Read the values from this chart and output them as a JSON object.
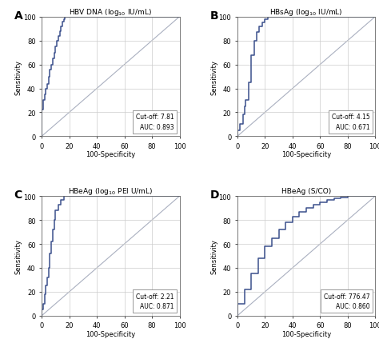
{
  "panels": [
    {
      "label": "A",
      "title": "HBV DNA (log$_{10}$ IU/mL)",
      "cutoff": "Cut-off: 7.81",
      "auc": "AUC: 0.893",
      "roc_x": [
        0,
        0,
        1,
        1,
        2,
        2,
        3,
        3,
        4,
        4,
        5,
        5,
        6,
        6,
        7,
        7,
        8,
        8,
        9,
        9,
        10,
        10,
        11,
        11,
        12,
        12,
        13,
        13,
        14,
        14,
        15,
        15,
        16,
        16,
        17,
        17,
        18,
        18,
        19,
        19,
        20,
        20,
        100
      ],
      "roc_y": [
        0,
        22,
        22,
        30,
        30,
        35,
        35,
        40,
        40,
        44,
        44,
        50,
        50,
        56,
        56,
        60,
        60,
        65,
        65,
        70,
        70,
        75,
        75,
        80,
        80,
        84,
        84,
        88,
        88,
        92,
        92,
        96,
        96,
        98,
        98,
        100,
        100,
        100,
        100,
        100,
        100,
        100,
        100
      ]
    },
    {
      "label": "B",
      "title": "HBsAg (log$_{10}$ IU/mL)",
      "cutoff": "Cut-off: 4.15",
      "auc": "AUC: 0.671",
      "roc_x": [
        0,
        0,
        2,
        2,
        4,
        4,
        5,
        5,
        6,
        6,
        8,
        8,
        10,
        10,
        12,
        12,
        14,
        14,
        16,
        16,
        18,
        18,
        20,
        20,
        22,
        22,
        25,
        25,
        30,
        30,
        35,
        35,
        38,
        38,
        100
      ],
      "roc_y": [
        0,
        5,
        5,
        10,
        10,
        18,
        18,
        25,
        25,
        30,
        30,
        45,
        45,
        68,
        68,
        80,
        80,
        87,
        87,
        92,
        92,
        95,
        95,
        98,
        98,
        100,
        100,
        100,
        100,
        100,
        100,
        100,
        100,
        100,
        100
      ]
    },
    {
      "label": "C",
      "title": "HBeAg (log$_{10}$ PEI U/mL)",
      "cutoff": "Cut-off: 2.21",
      "auc": "AUC: 0.871",
      "roc_x": [
        0,
        0,
        1,
        1,
        2,
        2,
        3,
        3,
        4,
        4,
        5,
        5,
        6,
        6,
        7,
        7,
        8,
        8,
        9,
        9,
        10,
        10,
        12,
        12,
        14,
        14,
        16,
        16,
        18,
        18,
        20,
        20,
        22,
        22,
        24,
        24,
        100
      ],
      "roc_y": [
        0,
        5,
        5,
        10,
        10,
        18,
        18,
        25,
        25,
        32,
        32,
        40,
        40,
        52,
        52,
        62,
        62,
        72,
        72,
        80,
        80,
        88,
        88,
        93,
        93,
        97,
        97,
        100,
        100,
        100,
        100,
        100,
        100,
        100,
        100,
        100,
        100
      ]
    },
    {
      "label": "D",
      "title": "HBeAg (S/CO)",
      "cutoff": "Cut-off: 776.47",
      "auc": "AUC: 0.860",
      "roc_x": [
        0,
        0,
        5,
        5,
        10,
        10,
        15,
        15,
        20,
        20,
        25,
        25,
        30,
        30,
        35,
        35,
        40,
        40,
        45,
        45,
        50,
        50,
        55,
        55,
        60,
        60,
        65,
        65,
        70,
        70,
        75,
        75,
        80,
        80,
        85,
        85,
        90,
        90,
        100
      ],
      "roc_y": [
        0,
        10,
        10,
        22,
        22,
        35,
        35,
        48,
        48,
        58,
        58,
        65,
        65,
        72,
        72,
        78,
        78,
        83,
        83,
        87,
        87,
        90,
        90,
        93,
        93,
        95,
        95,
        97,
        97,
        98,
        98,
        99,
        99,
        100,
        100,
        100,
        100,
        100,
        100
      ]
    }
  ],
  "line_color": "#3a4f8c",
  "diagonal_color": "#aab0c0",
  "bg_color": "#ffffff",
  "grid_color": "#cccccc",
  "tick_fontsize": 6,
  "label_fontsize": 6,
  "title_fontsize": 6.5,
  "panel_label_fontsize": 10,
  "annot_fontsize": 5.5
}
